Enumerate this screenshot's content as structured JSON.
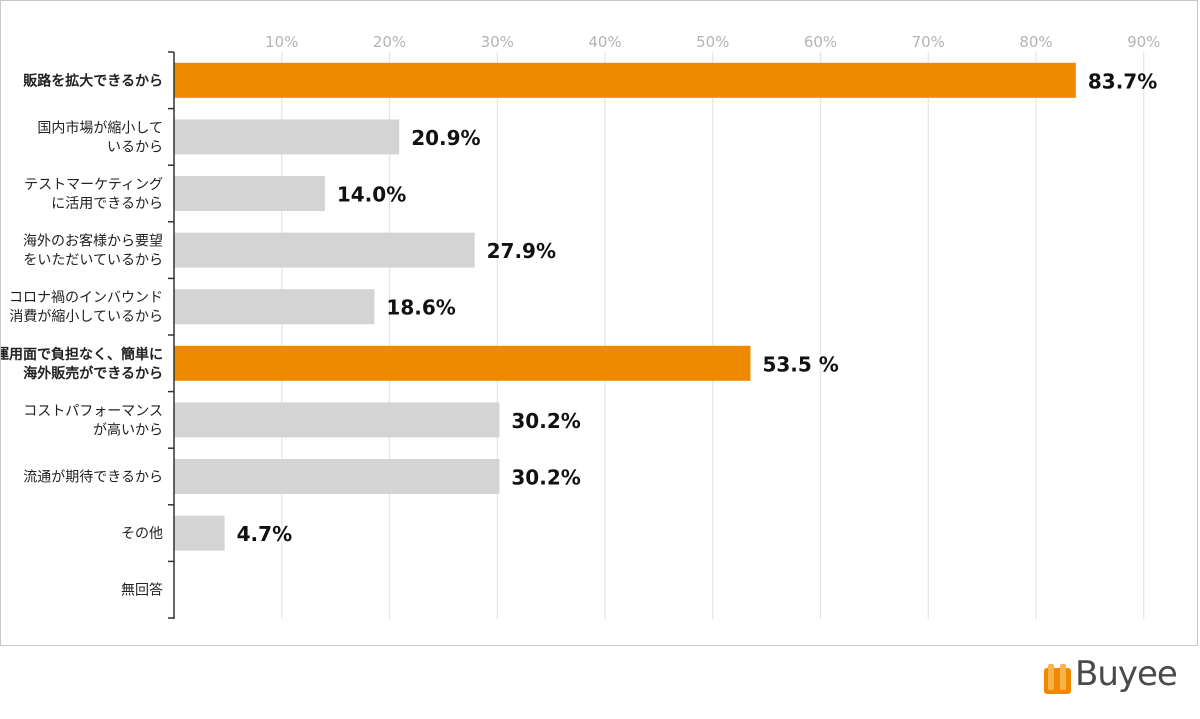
{
  "chart_data": {
    "type": "bar",
    "orientation": "horizontal",
    "categories": [
      "販路を拡大できるから",
      "国内市場が縮小して\nいるから",
      "テストマーケティング\nに活用できるから",
      "海外のお客様から要望\nをいただいているから",
      "コロナ禍のインバウンド\n消費が縮小しているから",
      "運用面で負担なく、簡単に\n海外販売ができるから",
      "コストパフォーマンス\nが高いから",
      "流通が期待できるから",
      "その他",
      "無回答"
    ],
    "values": [
      83.7,
      20.9,
      14.0,
      27.9,
      18.6,
      53.5,
      30.2,
      30.2,
      4.7,
      null
    ],
    "value_labels": [
      "83.7%",
      "20.9%",
      "14.0%",
      "27.9%",
      "18.6%",
      "53.5 %",
      "30.2%",
      "30.2%",
      "4.7%",
      ""
    ],
    "highlighted": [
      true,
      false,
      false,
      false,
      false,
      true,
      false,
      false,
      false,
      false
    ],
    "x_ticks": [
      10,
      20,
      30,
      40,
      50,
      60,
      70,
      80,
      90
    ],
    "x_tick_labels": [
      "10%",
      "20%",
      "30%",
      "40%",
      "50%",
      "60%",
      "70%",
      "80%",
      "90%"
    ],
    "xlim": [
      0,
      90
    ],
    "grid": true,
    "colors": {
      "highlight": "#ef8a00",
      "normal": "#d4d4d4",
      "grid": "#e4e4e4",
      "axis": "#333333",
      "tick_label": "#b4b4b4"
    }
  },
  "brand": {
    "name": "Buyee",
    "color": "#ef8a00"
  }
}
